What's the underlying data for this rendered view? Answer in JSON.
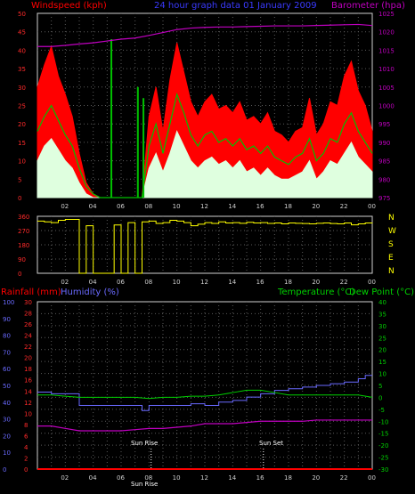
{
  "header": {
    "wind_label": "Windspeed (kph)",
    "center_label": "24 hour graph data  01 January 2009",
    "baro_label": "Barometer (hpa)"
  },
  "colors": {
    "bg": "#000000",
    "grid": "#5a5a5a",
    "frame": "#cfcfcf",
    "wind_gust": "#ff0000",
    "wind_avg": "#00c000",
    "wind_low": "#dfffdf",
    "baro": "#c000c0",
    "dir": "#ffff00",
    "humidity": "#6a6aff",
    "temp": "#00d000",
    "dew": "#c000c0",
    "rain": "#ff0000",
    "axis_left": "#ff2a2a",
    "axis_blue": "#6a6aff",
    "axis_right": "#00d000",
    "axis_baro": "#c000c0",
    "dir_letters": "#ffff00",
    "sun": "#ffffff"
  },
  "chart_data": [
    {
      "type": "line",
      "title": "24 hour graph data  01 January 2009",
      "x_ticks": [
        "02",
        "04",
        "06",
        "08",
        "10",
        "12",
        "14",
        "16",
        "18",
        "20",
        "22",
        "00"
      ],
      "xrange_hours": [
        0,
        24
      ],
      "left_axis": {
        "label": "Windspeed (kph)",
        "range": [
          0,
          50
        ],
        "ticks": [
          0,
          5,
          10,
          15,
          20,
          25,
          30,
          35,
          40,
          45,
          50
        ]
      },
      "right_axis": {
        "label": "Barometer (hpa)",
        "range": [
          975,
          1025
        ],
        "ticks": [
          975,
          980,
          985,
          990,
          995,
          1000,
          1005,
          1010,
          1015,
          1020,
          1025
        ]
      },
      "series": [
        {
          "name": "Barometer (hpa)",
          "axis": "right",
          "x": [
            0,
            1,
            2,
            3,
            4,
            5,
            6,
            7,
            8,
            9,
            10,
            11,
            12,
            13,
            14,
            15,
            16,
            17,
            18,
            19,
            20,
            21,
            22,
            23,
            24
          ],
          "values": [
            1016,
            1016,
            1016.3,
            1016.7,
            1017,
            1017.5,
            1018,
            1018.3,
            1019,
            1019.8,
            1020.6,
            1021,
            1021.2,
            1021.3,
            1021.3,
            1021.4,
            1021.5,
            1021.6,
            1021.6,
            1021.6,
            1021.7,
            1021.8,
            1021.9,
            1022,
            1021.7
          ]
        },
        {
          "name": "Wind gust",
          "axis": "left",
          "x": [
            0,
            0.5,
            1,
            1.5,
            2,
            2.5,
            3,
            3.5,
            4,
            4.5,
            5,
            5.5,
            6,
            6.5,
            7,
            7.5,
            8,
            8.5,
            9,
            9.5,
            10,
            10.5,
            11,
            11.5,
            12,
            12.5,
            13,
            13.5,
            14,
            14.5,
            15,
            15.5,
            16,
            16.5,
            17,
            17.5,
            18,
            18.5,
            19,
            19.5,
            20,
            20.5,
            21,
            21.5,
            22,
            22.5,
            23,
            23.5,
            24
          ],
          "values": [
            30,
            36,
            41,
            33,
            28,
            22,
            12,
            4,
            1,
            0,
            0,
            0,
            0,
            0,
            0,
            0,
            22,
            30,
            18,
            32,
            42,
            34,
            26,
            22,
            26,
            28,
            24,
            25,
            23,
            26,
            21,
            22,
            20,
            23,
            18,
            17,
            15,
            18,
            19,
            27,
            17,
            20,
            26,
            25,
            33,
            37,
            29,
            25,
            18
          ]
        },
        {
          "name": "Wind average",
          "axis": "left",
          "x": [
            0,
            0.5,
            1,
            1.5,
            2,
            2.5,
            3,
            3.5,
            4,
            4.5,
            5,
            5.5,
            6,
            6.5,
            7,
            7.5,
            8,
            8.5,
            9,
            9.5,
            10,
            10.5,
            11,
            11.5,
            12,
            12.5,
            13,
            13.5,
            14,
            14.5,
            15,
            15.5,
            16,
            16.5,
            17,
            17.5,
            18,
            18.5,
            19,
            19.5,
            20,
            20.5,
            21,
            21.5,
            22,
            22.5,
            23,
            23.5,
            24
          ],
          "values": [
            18,
            22,
            25,
            21,
            17,
            14,
            8,
            3,
            1,
            0,
            0,
            0,
            0,
            0,
            0,
            0,
            14,
            20,
            12,
            20,
            28,
            23,
            17,
            14,
            17,
            18,
            15,
            16,
            14,
            16,
            13,
            14,
            12,
            14,
            11,
            10,
            9,
            11,
            12,
            16,
            10,
            12,
            16,
            15,
            20,
            23,
            18,
            15,
            12
          ]
        },
        {
          "name": "Wind low",
          "axis": "left",
          "x": [
            0,
            0.5,
            1,
            1.5,
            2,
            2.5,
            3,
            3.5,
            4,
            4.5,
            5,
            5.5,
            6,
            6.5,
            7,
            7.5,
            8,
            8.5,
            9,
            9.5,
            10,
            10.5,
            11,
            11.5,
            12,
            12.5,
            13,
            13.5,
            14,
            14.5,
            15,
            15.5,
            16,
            16.5,
            17,
            17.5,
            18,
            18.5,
            19,
            19.5,
            20,
            20.5,
            21,
            21.5,
            22,
            22.5,
            23,
            23.5,
            24
          ],
          "values": [
            10,
            14,
            16,
            13,
            10,
            8,
            4,
            1,
            0,
            0,
            0,
            0,
            0,
            0,
            0,
            0,
            8,
            12,
            7,
            12,
            18,
            14,
            10,
            8,
            10,
            11,
            9,
            10,
            8,
            10,
            7,
            8,
            6,
            8,
            6,
            5,
            5,
            6,
            7,
            10,
            5,
            7,
            10,
            9,
            12,
            15,
            11,
            9,
            7
          ]
        }
      ]
    },
    {
      "type": "line",
      "title": "",
      "x_ticks": [
        "02",
        "04",
        "06",
        "08",
        "10",
        "12",
        "14",
        "16",
        "18",
        "20",
        "22",
        "00"
      ],
      "left_axis": {
        "range": [
          0,
          360
        ],
        "ticks": [
          0,
          90,
          180,
          270,
          360
        ]
      },
      "right_labels": [
        "N",
        "W",
        "S",
        "E",
        "N"
      ],
      "series": [
        {
          "name": "Wind direction",
          "x": [
            0,
            0.5,
            1,
            1.5,
            2,
            2.5,
            3,
            3.5,
            4,
            4.5,
            5,
            5.5,
            6,
            6.5,
            7,
            7.5,
            8,
            8.5,
            9,
            9.5,
            10,
            10.5,
            11,
            11.5,
            12,
            12.5,
            13,
            13.5,
            14,
            14.5,
            15,
            15.5,
            16,
            16.5,
            17,
            17.5,
            18,
            18.5,
            19,
            19.5,
            20,
            20.5,
            21,
            21.5,
            22,
            22.5,
            23,
            23.5,
            24
          ],
          "values": [
            330,
            325,
            320,
            335,
            340,
            340,
            0,
            300,
            0,
            0,
            0,
            305,
            0,
            320,
            0,
            325,
            330,
            315,
            320,
            335,
            330,
            320,
            300,
            310,
            320,
            315,
            325,
            318,
            320,
            316,
            322,
            318,
            320,
            315,
            318,
            312,
            318,
            316,
            314,
            312,
            316,
            318,
            314,
            312,
            318,
            306,
            312,
            318,
            320
          ]
        }
      ]
    },
    {
      "type": "line",
      "title": "",
      "x_ticks": [
        "02",
        "04",
        "06",
        "08",
        "10",
        "12",
        "14",
        "16",
        "18",
        "20",
        "22",
        "00"
      ],
      "left_axis": {
        "label": "Rainfall (mm)",
        "range": [
          0,
          30
        ],
        "ticks": [
          0,
          2,
          4,
          6,
          8,
          10,
          12,
          14,
          16,
          18,
          20,
          22,
          24,
          26,
          28,
          30
        ]
      },
      "left_axis2": {
        "label": "Humidity (%)",
        "range": [
          0,
          100
        ],
        "ticks": [
          0,
          10,
          20,
          30,
          40,
          50,
          60,
          70,
          80,
          90,
          100
        ]
      },
      "right_axis": {
        "label": "Temperature (°C)",
        "label2": "Dew Point (°C)",
        "range": [
          -30,
          40
        ],
        "ticks": [
          -30,
          -25,
          -20,
          -15,
          -10,
          -5,
          0,
          5,
          10,
          15,
          20,
          25,
          30,
          35,
          40
        ]
      },
      "annotations": [
        {
          "text": "Sun Rise",
          "hour": 8.15
        },
        {
          "text": "Sun Set",
          "hour": 16.2
        },
        {
          "text": "Sun Rise"
        }
      ],
      "series": [
        {
          "name": "Humidity (%)",
          "axis": "left2",
          "x": [
            0,
            1,
            2,
            2.5,
            3,
            4,
            5,
            6,
            7,
            7.5,
            8,
            9,
            10,
            11,
            12,
            13,
            14,
            15,
            16,
            17,
            18,
            19,
            20,
            21,
            22,
            23,
            23.5,
            24
          ],
          "values": [
            46,
            45,
            45,
            45,
            38,
            38,
            38,
            38,
            38,
            35,
            38,
            38,
            38,
            39,
            38,
            40,
            41,
            43,
            45,
            47,
            48,
            49,
            50,
            51,
            52,
            54,
            56,
            56
          ]
        },
        {
          "name": "Temperature (°C)",
          "axis": "right",
          "x": [
            0,
            1,
            2,
            3,
            4,
            5,
            6,
            7,
            8,
            9,
            10,
            11,
            12,
            13,
            14,
            15,
            16,
            17,
            18,
            19,
            20,
            21,
            22,
            23,
            24
          ],
          "values": [
            1,
            1,
            0.5,
            0,
            0,
            0,
            0,
            0,
            -0.5,
            0,
            0,
            0.5,
            0.5,
            1,
            2,
            3,
            3,
            2,
            1,
            1,
            1,
            1,
            1,
            1,
            0
          ]
        },
        {
          "name": "Dew Point (°C)",
          "axis": "right",
          "x": [
            0,
            1,
            2,
            3,
            4,
            5,
            6,
            7,
            8,
            9,
            10,
            11,
            12,
            13,
            14,
            15,
            16,
            17,
            18,
            19,
            20,
            21,
            22,
            23,
            24
          ],
          "values": [
            -12,
            -12,
            -13,
            -14,
            -14,
            -14,
            -14,
            -13.5,
            -13,
            -13,
            -12.5,
            -12,
            -11,
            -11,
            -11,
            -10.5,
            -10,
            -10,
            -10,
            -10,
            -9.5,
            -9.5,
            -9.5,
            -9.5,
            -9.5
          ]
        },
        {
          "name": "Rainfall (mm)",
          "axis": "left",
          "x": [
            0,
            24
          ],
          "values": [
            0,
            0
          ]
        }
      ]
    }
  ]
}
